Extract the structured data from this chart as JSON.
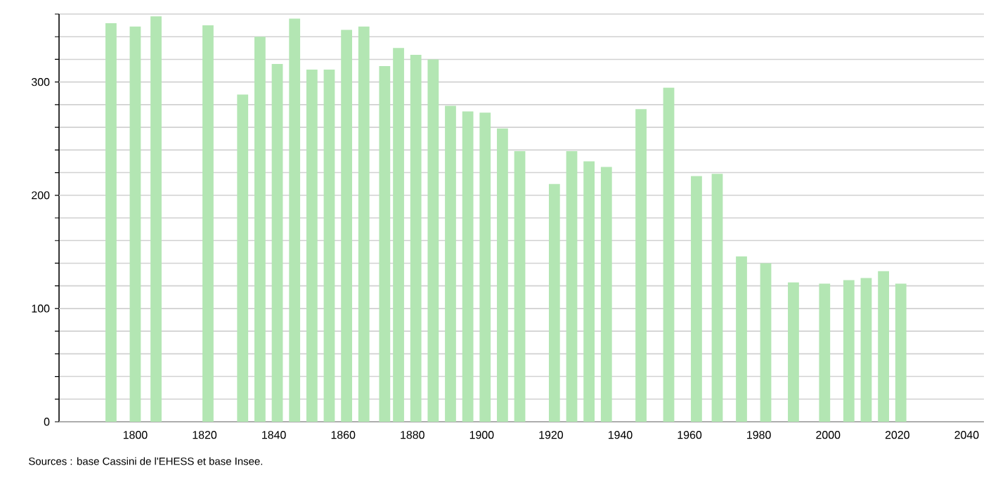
{
  "chart_data": {
    "type": "bar",
    "x": [
      1793,
      1800,
      1806,
      1821,
      1831,
      1836,
      1841,
      1846,
      1851,
      1856,
      1861,
      1866,
      1872,
      1876,
      1881,
      1886,
      1891,
      1896,
      1901,
      1906,
      1911,
      1921,
      1926,
      1931,
      1936,
      1946,
      1954,
      1962,
      1968,
      1975,
      1982,
      1990,
      1999,
      2006,
      2011,
      2016,
      2021
    ],
    "values": [
      352,
      349,
      358,
      350,
      289,
      340,
      316,
      356,
      311,
      311,
      346,
      349,
      314,
      330,
      324,
      320,
      279,
      274,
      273,
      259,
      239,
      210,
      239,
      230,
      225,
      276,
      295,
      217,
      219,
      146,
      140,
      123,
      122,
      125,
      127,
      133,
      122
    ],
    "color": "#b3e6b3",
    "xlim": [
      1778,
      2045
    ],
    "xticks": [
      1800,
      1820,
      1840,
      1860,
      1880,
      1900,
      1920,
      1940,
      1960,
      1980,
      2000,
      2020,
      2040
    ],
    "ylim": [
      0,
      360
    ],
    "yticks": [
      0,
      {
        "value": 20,
        "label": null
      },
      {
        "value": 40,
        "label": null
      },
      {
        "value": 60,
        "label": null
      },
      {
        "value": 80,
        "label": null
      },
      100,
      {
        "value": 120,
        "label": null
      },
      {
        "value": 140,
        "label": null
      },
      {
        "value": 160,
        "label": null
      },
      {
        "value": 180,
        "label": null
      },
      200,
      {
        "value": 220,
        "label": null
      },
      {
        "value": 240,
        "label": null
      },
      {
        "value": 260,
        "label": null
      },
      {
        "value": 280,
        "label": null
      },
      300,
      {
        "value": 320,
        "label": null
      },
      {
        "value": 340,
        "label": null
      },
      {
        "value": 360,
        "label": null
      }
    ],
    "grid": "y",
    "annotations": [
      "Sources : base Cassini de l'EHESS et base Insee."
    ]
  }
}
